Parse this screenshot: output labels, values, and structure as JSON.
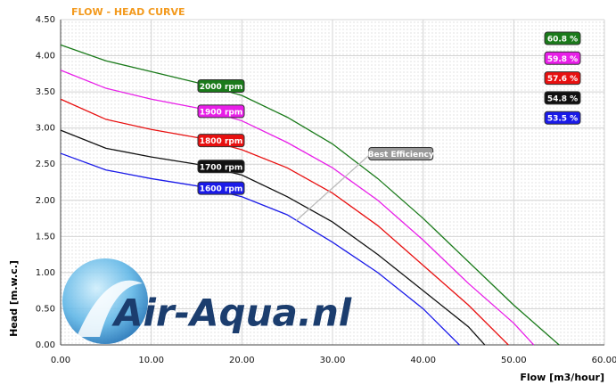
{
  "chart_data": {
    "type": "line",
    "title": "FLOW - HEAD CURVE",
    "xlabel": "Flow [m3/hour]",
    "ylabel": "Head [m.w.c.]",
    "logo": "Air-Aqua.nl",
    "xlim": [
      0,
      60
    ],
    "ylim": [
      0,
      4.5
    ],
    "grid": true,
    "xticks": [
      {
        "value": 0,
        "label": "0.00"
      },
      {
        "value": 10,
        "label": "10.00"
      },
      {
        "value": 20,
        "label": "20.00"
      },
      {
        "value": 30,
        "label": "30.00"
      },
      {
        "value": 40,
        "label": "40.00"
      },
      {
        "value": 50,
        "label": "50.00"
      },
      {
        "value": 60,
        "label": "60.00"
      }
    ],
    "yticks": [
      {
        "value": 0,
        "label": "0.00"
      },
      {
        "value": 0.5,
        "label": "0.50"
      },
      {
        "value": 1,
        "label": "1.00"
      },
      {
        "value": 1.5,
        "label": "1.50"
      },
      {
        "value": 2,
        "label": "2.00"
      },
      {
        "value": 2.5,
        "label": "2.50"
      },
      {
        "value": 3,
        "label": "3.00"
      },
      {
        "value": 3.5,
        "label": "3.50"
      },
      {
        "value": 4,
        "label": "4.00"
      },
      {
        "value": 4.5,
        "label": "4.50"
      }
    ],
    "series": [
      {
        "name": "2000 rpm",
        "efficiency": "60.8 %",
        "color": "#1a7a1a",
        "x": [
          0,
          5,
          10,
          15,
          20,
          25,
          30,
          35,
          40,
          45,
          50,
          55
        ],
        "values": [
          4.15,
          3.93,
          3.78,
          3.63,
          3.45,
          3.15,
          2.78,
          2.3,
          1.75,
          1.15,
          0.55,
          0
        ]
      },
      {
        "name": "1900 rpm",
        "efficiency": "59.8 %",
        "color": "#e81ee8",
        "x": [
          0,
          5,
          10,
          15,
          20,
          25,
          30,
          35,
          40,
          45,
          50,
          52.2
        ],
        "values": [
          3.8,
          3.55,
          3.4,
          3.28,
          3.1,
          2.8,
          2.45,
          2.0,
          1.45,
          0.85,
          0.3,
          0
        ]
      },
      {
        "name": "1800 rpm",
        "efficiency": "57.6 %",
        "color": "#e81010",
        "x": [
          0,
          5,
          10,
          15,
          20,
          25,
          30,
          35,
          40,
          45,
          49.4
        ],
        "values": [
          3.4,
          3.12,
          2.98,
          2.87,
          2.7,
          2.45,
          2.1,
          1.65,
          1.1,
          0.55,
          0
        ]
      },
      {
        "name": "1700 rpm",
        "efficiency": "54.8 %",
        "color": "#111111",
        "x": [
          0,
          5,
          10,
          15,
          20,
          25,
          30,
          35,
          40,
          45,
          46.8
        ],
        "values": [
          2.97,
          2.72,
          2.6,
          2.5,
          2.35,
          2.05,
          1.7,
          1.25,
          0.75,
          0.25,
          0
        ]
      },
      {
        "name": "1600 rpm",
        "efficiency": "53.5 %",
        "color": "#1a1ae8",
        "x": [
          0,
          5,
          10,
          15,
          20,
          25,
          30,
          35,
          40,
          44
        ],
        "values": [
          2.65,
          2.42,
          2.3,
          2.2,
          2.05,
          1.8,
          1.42,
          1.0,
          0.5,
          0
        ]
      }
    ],
    "annotation": {
      "text": "Best Efficiency",
      "x": [
        26,
        34
      ],
      "values": [
        1.72,
        2.62
      ]
    }
  }
}
